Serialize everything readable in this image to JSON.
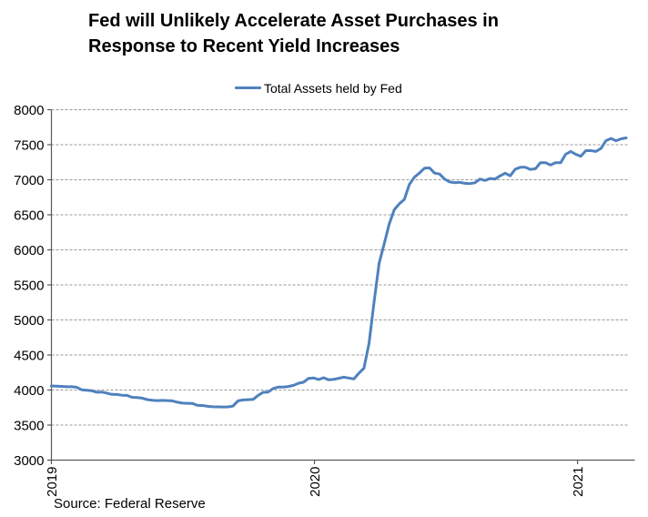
{
  "title_lines": [
    "Fed will Unlikely Accelerate Asset Purchases in",
    "Response to Recent Yield Increases"
  ],
  "legend": {
    "label": "Total Assets held by Fed"
  },
  "source": "Source: Federal Reserve",
  "colors": {
    "line": "#4F81BD",
    "grid": "#999999",
    "axis": "#595959",
    "text": "#000000",
    "background": "#FFFFFF"
  },
  "chart_data": {
    "type": "line",
    "title": "Fed will Unlikely Accelerate Asset Purchases in Response to Recent Yield Increases",
    "legend": [
      "Total Assets held by Fed"
    ],
    "legend_position": "top-center",
    "xlabel": "",
    "ylabel": "",
    "grid": "horizontal-dashed",
    "ylim": [
      3000,
      8000
    ],
    "ytick_step": 500,
    "yticks": [
      3000,
      3500,
      4000,
      4500,
      5000,
      5500,
      6000,
      6500,
      7000,
      7500,
      8000
    ],
    "xticks": [
      2019,
      2020,
      2021
    ],
    "xlim": [
      2019.0,
      2021.19
    ],
    "x_unit": "year (weekly observations)",
    "y_unit": "billions of US dollars",
    "series": [
      {
        "name": "Total Assets held by Fed",
        "x_start_year": 2019.0,
        "x_step_years": 0.019165,
        "values": [
          4058,
          4056,
          4052,
          4047,
          4047,
          4040,
          4004,
          3996,
          3990,
          3969,
          3972,
          3956,
          3938,
          3936,
          3926,
          3924,
          3896,
          3892,
          3884,
          3863,
          3854,
          3849,
          3852,
          3849,
          3846,
          3826,
          3813,
          3810,
          3808,
          3780,
          3779,
          3768,
          3761,
          3760,
          3759,
          3760,
          3770,
          3845,
          3858,
          3862,
          3866,
          3924,
          3967,
          3972,
          4022,
          4041,
          4043,
          4051,
          4066,
          4096,
          4112,
          4166,
          4173,
          4149,
          4175,
          4146,
          4152,
          4167,
          4183,
          4171,
          4159,
          4242,
          4312,
          4668,
          5254,
          5812,
          6083,
          6368,
          6573,
          6656,
          6721,
          6934,
          7037,
          7097,
          7165,
          7169,
          7095,
          7082,
          7009,
          6969,
          6959,
          6964,
          6949,
          6945,
          6957,
          7011,
          6990,
          7018,
          7011,
          7056,
          7093,
          7056,
          7151,
          7178,
          7178,
          7148,
          7157,
          7243,
          7243,
          7212,
          7243,
          7243,
          7363,
          7404,
          7363,
          7335,
          7415,
          7415,
          7404,
          7447,
          7557,
          7590,
          7557,
          7585,
          7598
        ]
      }
    ]
  }
}
